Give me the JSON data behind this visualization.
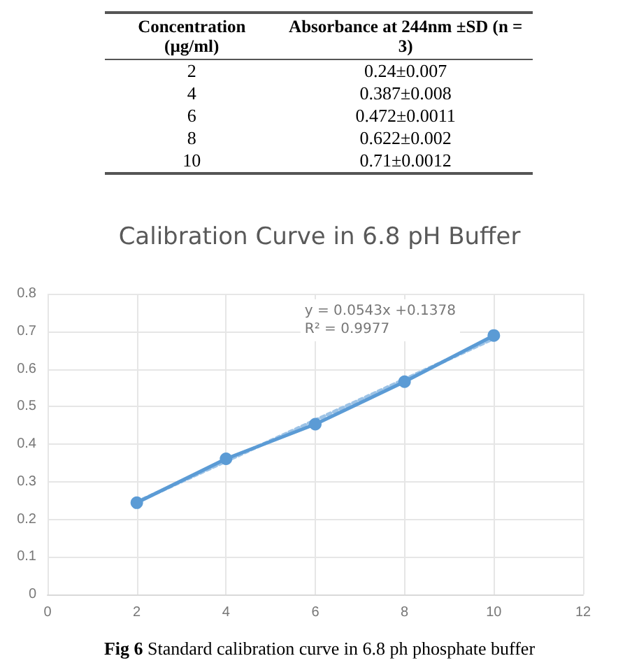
{
  "chart_data": {
    "type": "line",
    "title": "Calibration Curve in 6.8 pH Buffer",
    "x": [
      2,
      4,
      6,
      8,
      10
    ],
    "series": [
      {
        "color": "#5b9bd5",
        "values": [
          0.244,
          0.361,
          0.453,
          0.566,
          0.689
        ],
        "marker": "circle",
        "line_style": "solid"
      },
      {
        "type": "line",
        "color": "#9dc3e6",
        "x": [
          2,
          10
        ],
        "values": [
          0.246,
          0.681
        ],
        "marker": "none",
        "line_style": "dotted"
      }
    ],
    "xlim": [
      0,
      12
    ],
    "xticks": [
      0,
      2,
      4,
      6,
      8,
      10,
      12
    ],
    "ylim": [
      0,
      0.8
    ],
    "yticks": [
      0,
      0.1,
      0.2,
      0.3,
      0.4,
      0.5,
      0.6,
      0.7,
      0.8
    ],
    "grid": true,
    "annotations": [
      "Concentration (µg/ml)",
      "Absorbance at 244nm ±SD (n = 3)",
      "2",
      "0.24±0.007",
      "4",
      "0.387±0.008",
      "6",
      "0.472±0.0011",
      "8",
      "0.622±0.002",
      "10",
      "0.71±0.0012",
      "y = 0.0543x +0.1378\nR² = 0.9977",
      "Fig 6 Standard calibration curve in 6.8 ph phosphate buffer"
    ]
  }
}
